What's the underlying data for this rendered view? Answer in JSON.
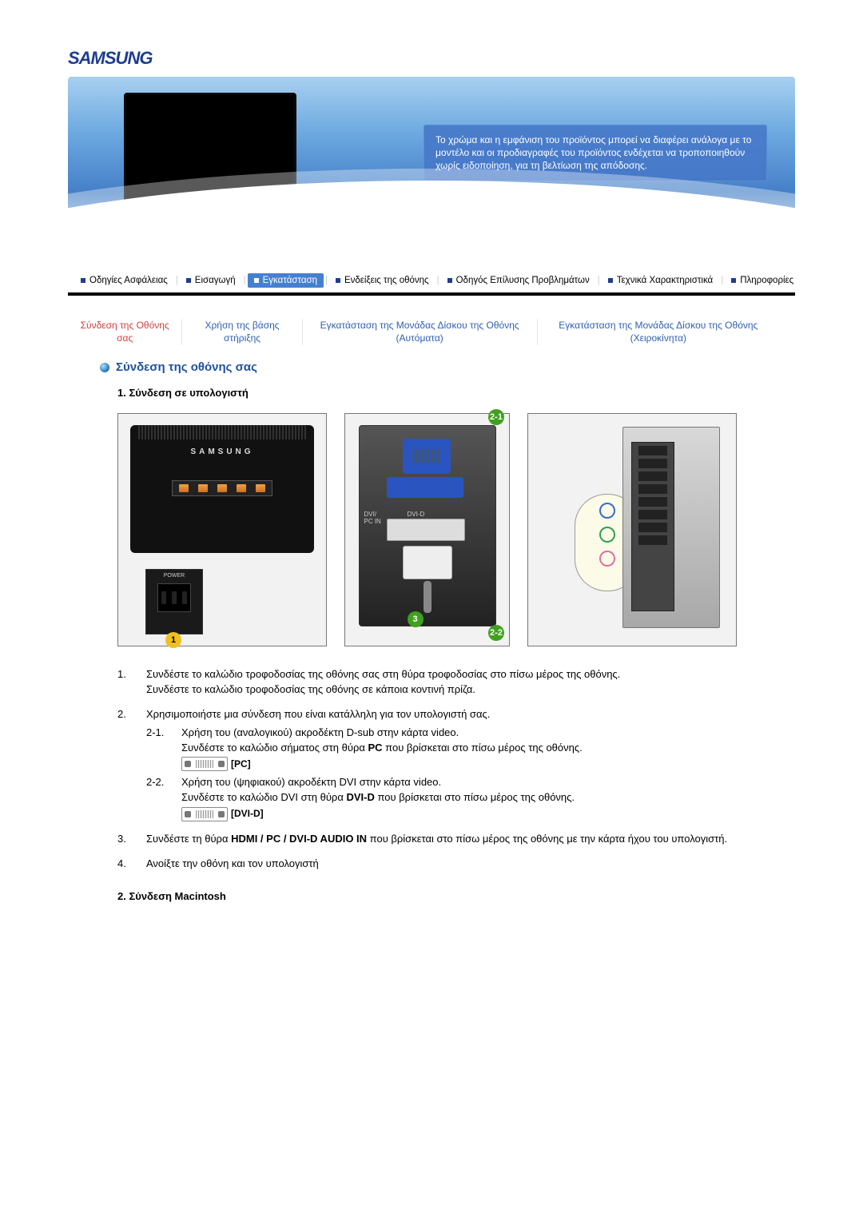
{
  "logo_text": "SAMSUNG",
  "hero_callout": "Το χρώμα και η εμφάνιση του προϊόντος μπορεί να διαφέρει ανάλογα με το μοντέλο και οι προδιαγραφές του προϊόντος ενδέχεται να τροποποιηθούν χωρίς ειδοποίηση, για τη βελτίωση της απόδοσης.",
  "nav": {
    "items": [
      "Οδηγίες Ασφάλειας",
      "Εισαγωγή",
      "Εγκατάσταση",
      "Ενδείξεις της οθόνης",
      "Οδηγός Επίλυσης Προβλημάτων",
      "Τεχνικά Χαρακτηριστικά",
      "Πληροφορίες"
    ],
    "active_index": 2
  },
  "subnav": {
    "items": [
      "Σύνδεση της Οθόνης σας",
      "Χρήση της βάσης στήριξης",
      "Εγκατάσταση της Μονάδας Δίσκου της Οθόνης (Αυτόματα)",
      "Εγκατάσταση της Μονάδας Δίσκου της Οθόνης (Χειροκίνητα)"
    ],
    "active_index": 0
  },
  "section_title": "Σύνδεση της οθόνης σας",
  "subtitle1": "1. Σύνδεση σε υπολογιστή",
  "subtitle2": "2. Σύνδεση Macintosh",
  "diagram": {
    "brand": "SAMSUNG",
    "power_label": "POWER",
    "port_labels": {
      "dvi_pc": "DVI/\nPC IN",
      "dvi_d": "DVI-D"
    },
    "badge21": "2-1",
    "badge22": "2-2",
    "badge1": "1",
    "badge3": "3"
  },
  "instructions": [
    {
      "num": "1.",
      "lines": [
        "Συνδέστε το καλώδιο τροφοδοσίας της οθόνης σας στη θύρα τροφοδοσίας στο πίσω μέρος της οθόνης.",
        "Συνδέστε το καλώδιο τροφοδοσίας της οθόνης σε κάποια κοντινή πρίζα."
      ]
    },
    {
      "num": "2.",
      "lines": [
        "Χρησιμοποιήστε μια σύνδεση που είναι κατάλληλη για τον υπολογιστή σας."
      ],
      "subs": [
        {
          "num": "2-1.",
          "lines": [
            "Χρήση του (αναλογικού) ακροδέκτη D-sub στην κάρτα video.",
            "Συνδέστε το καλώδιο σήματος στη θύρα <b>PC</b> που βρίσκεται στο πίσω μέρος της οθόνης."
          ],
          "tag": "[PC]"
        },
        {
          "num": "2-2.",
          "lines": [
            "Χρήση του (ψηφιακού) ακροδέκτη DVI στην κάρτα video.",
            "Συνδέστε το καλώδιο DVI στη θύρα <b>DVI-D</b> που βρίσκεται στο πίσω μέρος της οθόνης."
          ],
          "tag": "[DVI-D]"
        }
      ]
    },
    {
      "num": "3.",
      "lines": [
        "Συνδέστε τη θύρα <b>HDMI / PC / DVI-D AUDIO IN</b> που βρίσκεται στο πίσω μέρος της οθόνης με την κάρτα ήχου του υπολογιστή."
      ]
    },
    {
      "num": "4.",
      "lines": [
        "Ανοίξτε την οθόνη και τον υπολογιστή"
      ]
    }
  ]
}
